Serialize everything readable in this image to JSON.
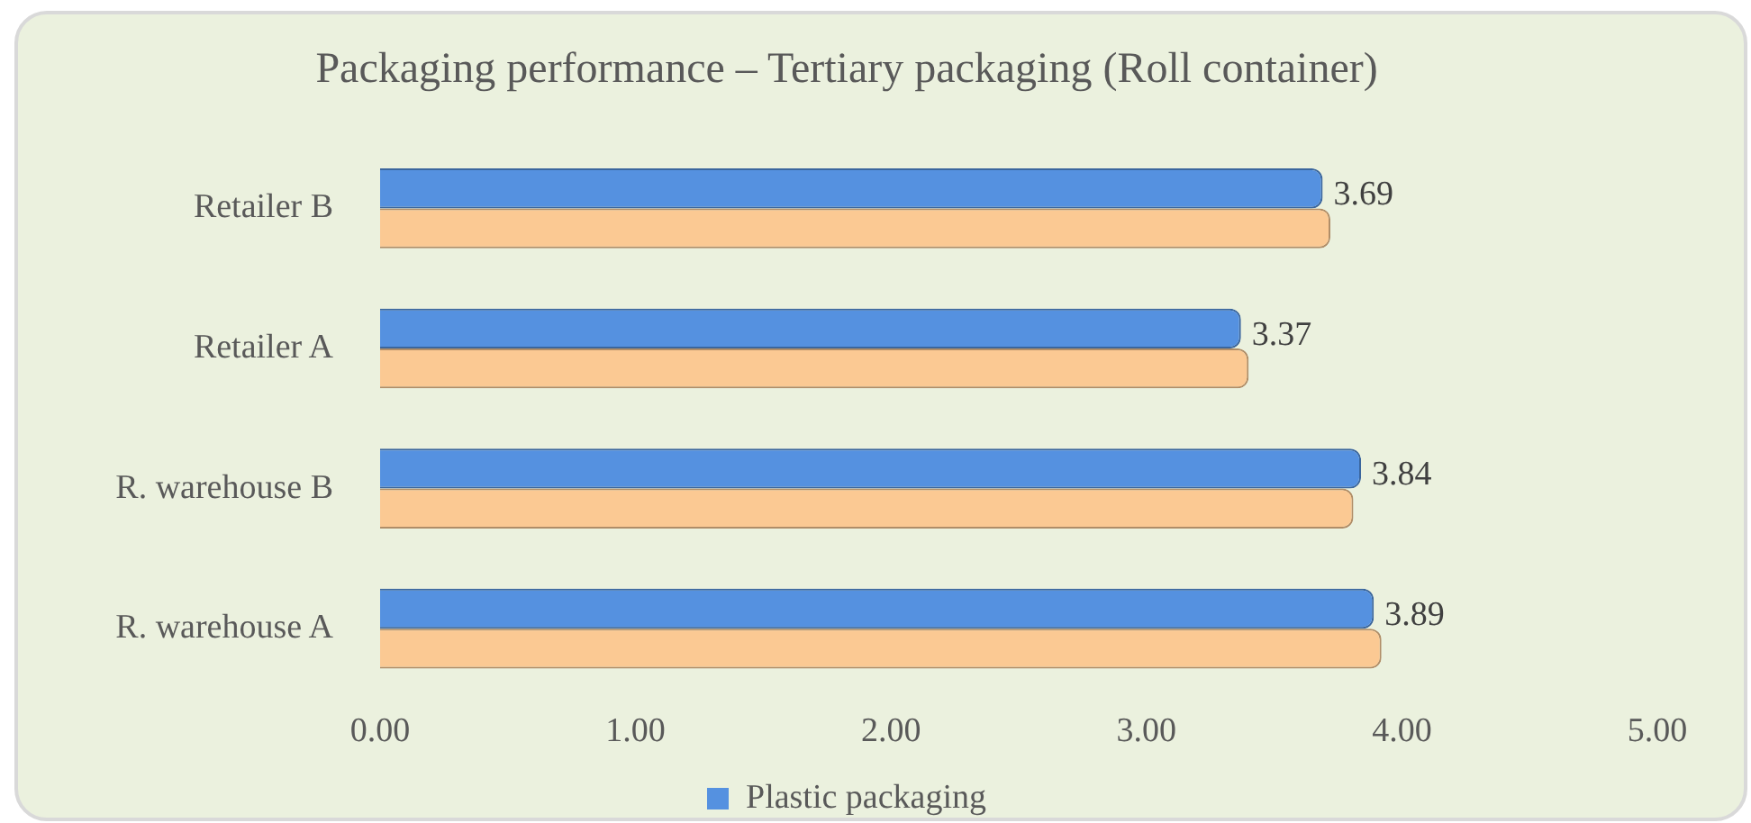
{
  "chart_data": {
    "type": "bar",
    "orientation": "horizontal",
    "title": "Packaging performance – Tertiary packaging (Roll container)",
    "categories": [
      "Retailer B",
      "Retailer A",
      "R. warehouse B",
      "R. warehouse A"
    ],
    "series": [
      {
        "name": "Plastic packaging",
        "color": "#5591e0",
        "values": [
          3.69,
          3.37,
          3.84,
          3.89
        ],
        "value_labels": [
          "3.69",
          "3.37",
          "3.84",
          "3.89"
        ]
      },
      {
        "color": "#fbc993",
        "values": [
          3.72,
          3.4,
          3.81,
          3.92
        ]
      }
    ],
    "xlim": [
      0,
      5
    ],
    "xticks": [
      {
        "value": 0,
        "label": "0.00"
      },
      {
        "value": 1,
        "label": "1.00"
      },
      {
        "value": 2,
        "label": "2.00"
      },
      {
        "value": 3,
        "label": "3.00"
      },
      {
        "value": 4,
        "label": "4.00"
      },
      {
        "value": 5,
        "label": "5.00"
      }
    ],
    "grid": false,
    "legend": "bottom"
  }
}
